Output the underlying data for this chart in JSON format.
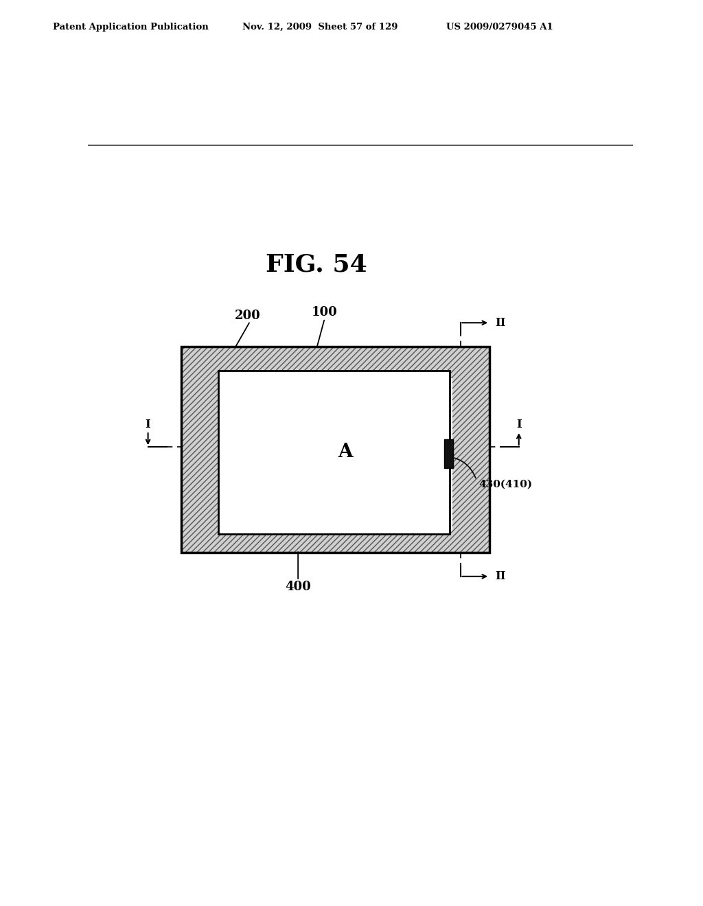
{
  "fig_title": "FIG. 54",
  "header_left": "Patent Application Publication",
  "header_mid": "Nov. 12, 2009  Sheet 57 of 129",
  "header_right": "US 2009/0279045 A1",
  "bg_color": "#ffffff",
  "label_200": "200",
  "label_100": "100",
  "label_400": "400",
  "label_A": "A",
  "label_430": "430(410)"
}
